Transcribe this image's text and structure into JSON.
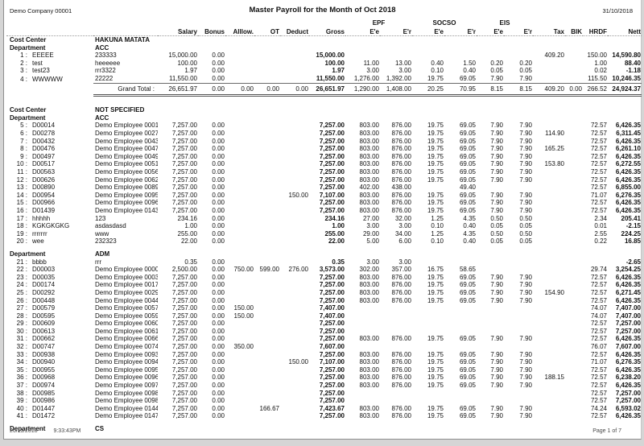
{
  "page": {
    "company": "Demo Company 00001",
    "title": "Master Payroll for the Month of Oct 2018",
    "report_date": "31/10/2018",
    "footer_date": "26/11/2018",
    "footer_time": "9:33:43PM",
    "page_info": "Page 1 of 7"
  },
  "table": {
    "group_headers": {
      "epf": "EPF",
      "socso": "SOCSO",
      "eis": "EIS"
    },
    "columns": [
      "Salary",
      "Bonus",
      "Alllow.",
      "OT",
      "Deduct",
      "Gross",
      "E'e",
      "E'r",
      "E'e",
      "E'r",
      "E'e",
      "E'r",
      "Tax",
      "BIK",
      "HRDF",
      "Nett"
    ],
    "labels": {
      "cost_center": "Cost Center",
      "department": "Department",
      "grand_total": "Grand Total :"
    },
    "rows": [
      {
        "t": "cc",
        "v": "HAKUNA MATATA"
      },
      {
        "t": "dept",
        "v": "ACC"
      },
      {
        "t": "emp",
        "n": 1,
        "code": "EEEEE",
        "name": "233333",
        "c": [
          "15,000.00",
          "0.00",
          "",
          "",
          "",
          "15,000.00",
          "",
          "",
          "",
          "",
          "",
          "",
          "409.20",
          "",
          "150.00",
          "14,590.80"
        ]
      },
      {
        "t": "emp",
        "n": 2,
        "code": "test",
        "name": "heeeeee",
        "c": [
          "100.00",
          "0.00",
          "",
          "",
          "",
          "100.00",
          "11.00",
          "13.00",
          "0.40",
          "1.50",
          "0.20",
          "0.20",
          "",
          "",
          "1.00",
          "88.40"
        ]
      },
      {
        "t": "emp",
        "n": 3,
        "code": "test23",
        "name": "rrr3322",
        "c": [
          "1.97",
          "0.00",
          "",
          "",
          "",
          "1.97",
          "3.00",
          "3.00",
          "0.10",
          "0.40",
          "0.05",
          "0.05",
          "",
          "",
          "0.02",
          "-1.18"
        ]
      },
      {
        "t": "emp",
        "n": 4,
        "code": "WWWWW",
        "name": "22222",
        "c": [
          "11,550.00",
          "0.00",
          "",
          "",
          "",
          "11,550.00",
          "1,276.00",
          "1,392.00",
          "19.75",
          "69.05",
          "7.90",
          "7.90",
          "",
          "",
          "115.50",
          "10,246.35"
        ]
      },
      {
        "t": "total",
        "c": [
          "26,651.97",
          "0.00",
          "0.00",
          "0.00",
          "0.00",
          "26,651.97",
          "1,290.00",
          "1,408.00",
          "20.25",
          "70.95",
          "8.15",
          "8.15",
          "409.20",
          "0.00",
          "266.52",
          "24,924.37"
        ]
      },
      {
        "t": "cc",
        "v": "NOT SPECIFIED"
      },
      {
        "t": "dept",
        "v": "ACC"
      },
      {
        "t": "emp",
        "n": 5,
        "code": "D00014",
        "name": "Demo Employee 00014",
        "c": [
          "7,257.00",
          "0.00",
          "",
          "",
          "",
          "7,257.00",
          "803.00",
          "876.00",
          "19.75",
          "69.05",
          "7.90",
          "7.90",
          "",
          "",
          "72.57",
          "6,426.35"
        ]
      },
      {
        "t": "emp",
        "n": 6,
        "code": "D00278",
        "name": "Demo Employee 00278",
        "c": [
          "7,257.00",
          "0.00",
          "",
          "",
          "",
          "7,257.00",
          "803.00",
          "876.00",
          "19.75",
          "69.05",
          "7.90",
          "7.90",
          "114.90",
          "",
          "72.57",
          "6,311.45"
        ]
      },
      {
        "t": "emp",
        "n": 7,
        "code": "D00432",
        "name": "Demo Employee 00432",
        "c": [
          "7,257.00",
          "0.00",
          "",
          "",
          "",
          "7,257.00",
          "803.00",
          "876.00",
          "19.75",
          "69.05",
          "7.90",
          "7.90",
          "",
          "",
          "72.57",
          "6,426.35"
        ]
      },
      {
        "t": "emp",
        "n": 8,
        "code": "D00476",
        "name": "Demo Employee 00476",
        "c": [
          "7,257.00",
          "0.00",
          "",
          "",
          "",
          "7,257.00",
          "803.00",
          "876.00",
          "19.75",
          "69.05",
          "7.90",
          "7.90",
          "165.25",
          "",
          "72.57",
          "6,261.10"
        ]
      },
      {
        "t": "emp",
        "n": 9,
        "code": "D00497",
        "name": "Demo Employee 00497",
        "c": [
          "7,257.00",
          "0.00",
          "",
          "",
          "",
          "7,257.00",
          "803.00",
          "876.00",
          "19.75",
          "69.05",
          "7.90",
          "7.90",
          "",
          "",
          "72.57",
          "6,426.35"
        ]
      },
      {
        "t": "emp",
        "n": 10,
        "code": "D00517",
        "name": "Demo Employee 00517",
        "c": [
          "7,257.00",
          "0.00",
          "",
          "",
          "",
          "7,257.00",
          "803.00",
          "876.00",
          "19.75",
          "69.05",
          "7.90",
          "7.90",
          "153.80",
          "",
          "72.57",
          "6,272.55"
        ]
      },
      {
        "t": "emp",
        "n": 11,
        "code": "D00563",
        "name": "Demo Employee 00563",
        "c": [
          "7,257.00",
          "0.00",
          "",
          "",
          "",
          "7,257.00",
          "803.00",
          "876.00",
          "19.75",
          "69.05",
          "7.90",
          "7.90",
          "",
          "",
          "72.57",
          "6,426.35"
        ]
      },
      {
        "t": "emp",
        "n": 12,
        "code": "D00626",
        "name": "Demo Employee 00626",
        "c": [
          "7,257.00",
          "0.00",
          "",
          "",
          "",
          "7,257.00",
          "803.00",
          "876.00",
          "19.75",
          "69.05",
          "7.90",
          "7.90",
          "",
          "",
          "72.57",
          "6,426.35"
        ]
      },
      {
        "t": "emp",
        "n": 13,
        "code": "D00890",
        "name": "Demo Employee 00890",
        "c": [
          "7,257.00",
          "0.00",
          "",
          "",
          "",
          "7,257.00",
          "402.00",
          "438.00",
          "",
          "49.40",
          "",
          "",
          "",
          "",
          "72.57",
          "6,855.00"
        ]
      },
      {
        "t": "emp",
        "n": 14,
        "code": "D00954",
        "name": "Demo Employee 00954",
        "c": [
          "7,257.00",
          "0.00",
          "",
          "",
          "150.00",
          "7,107.00",
          "803.00",
          "876.00",
          "19.75",
          "69.05",
          "7.90",
          "7.90",
          "",
          "",
          "71.07",
          "6,276.35"
        ]
      },
      {
        "t": "emp",
        "n": 15,
        "code": "D00966",
        "name": "Demo Employee 00966",
        "c": [
          "7,257.00",
          "0.00",
          "",
          "",
          "",
          "7,257.00",
          "803.00",
          "876.00",
          "19.75",
          "69.05",
          "7.90",
          "7.90",
          "",
          "",
          "72.57",
          "6,426.35"
        ]
      },
      {
        "t": "emp",
        "n": 16,
        "code": "D01439",
        "name": "Demo Employee 01439",
        "c": [
          "7,257.00",
          "0.00",
          "",
          "",
          "",
          "7,257.00",
          "803.00",
          "876.00",
          "19.75",
          "69.05",
          "7.90",
          "7.90",
          "",
          "",
          "72.57",
          "6,426.35"
        ]
      },
      {
        "t": "emp",
        "n": 17,
        "code": "hhhhh",
        "name": "123",
        "c": [
          "234.16",
          "0.00",
          "",
          "",
          "",
          "234.16",
          "27.00",
          "32.00",
          "1.25",
          "4.35",
          "0.50",
          "0.50",
          "",
          "",
          "2.34",
          "205.41"
        ]
      },
      {
        "t": "emp",
        "n": 18,
        "code": "KGKGKGKG",
        "name": "asdasdasd",
        "c": [
          "1.00",
          "0.00",
          "",
          "",
          "",
          "1.00",
          "3.00",
          "3.00",
          "0.10",
          "0.40",
          "0.05",
          "0.05",
          "",
          "",
          "0.01",
          "-2.15"
        ]
      },
      {
        "t": "emp",
        "n": 19,
        "code": "rrrrrrr",
        "name": "www",
        "c": [
          "255.00",
          "0.00",
          "",
          "",
          "",
          "255.00",
          "29.00",
          "34.00",
          "1.25",
          "4.35",
          "0.50",
          "0.50",
          "",
          "",
          "2.55",
          "224.25"
        ]
      },
      {
        "t": "emp",
        "n": 20,
        "code": "wee",
        "name": "232323",
        "c": [
          "22.00",
          "0.00",
          "",
          "",
          "",
          "22.00",
          "5.00",
          "6.00",
          "0.10",
          "0.40",
          "0.05",
          "0.05",
          "",
          "",
          "0.22",
          "16.85"
        ]
      },
      {
        "t": "dept",
        "v": "ADM"
      },
      {
        "t": "emp",
        "n": 21,
        "code": "bbbb",
        "name": "rrr",
        "c": [
          "0.35",
          "0.00",
          "",
          "",
          "",
          "0.35",
          "3.00",
          "3.00",
          "",
          "",
          "",
          "",
          "",
          "",
          "",
          "-2.65"
        ]
      },
      {
        "t": "emp",
        "n": 22,
        "code": "D00003",
        "name": "Demo Employee 00003",
        "c": [
          "2,500.00",
          "0.00",
          "750.00",
          "599.00",
          "276.00",
          "3,573.00",
          "302.00",
          "357.00",
          "16.75",
          "58.65",
          "",
          "",
          "",
          "",
          "29.74",
          "3,254.25"
        ]
      },
      {
        "t": "emp",
        "n": 23,
        "code": "D00035",
        "name": "Demo Employee 00035",
        "c": [
          "7,257.00",
          "0.00",
          "",
          "",
          "",
          "7,257.00",
          "803.00",
          "876.00",
          "19.75",
          "69.05",
          "7.90",
          "7.90",
          "",
          "",
          "72.57",
          "6,426.35"
        ]
      },
      {
        "t": "emp",
        "n": 24,
        "code": "D00174",
        "name": "Demo Employee 00174",
        "c": [
          "7,257.00",
          "0.00",
          "",
          "",
          "",
          "7,257.00",
          "803.00",
          "876.00",
          "19.75",
          "69.05",
          "7.90",
          "7.90",
          "",
          "",
          "72.57",
          "6,426.35"
        ]
      },
      {
        "t": "emp",
        "n": 25,
        "code": "D00292",
        "name": "Demo Employee 00292",
        "c": [
          "7,257.00",
          "0.00",
          "",
          "",
          "",
          "7,257.00",
          "803.00",
          "876.00",
          "19.75",
          "69.05",
          "7.90",
          "7.90",
          "154.90",
          "",
          "72.57",
          "6,271.45"
        ]
      },
      {
        "t": "emp",
        "n": 26,
        "code": "D00448",
        "name": "Demo Employee 00448",
        "c": [
          "7,257.00",
          "0.00",
          "",
          "",
          "",
          "7,257.00",
          "803.00",
          "876.00",
          "19.75",
          "69.05",
          "7.90",
          "7.90",
          "",
          "",
          "72.57",
          "6,426.35"
        ]
      },
      {
        "t": "emp",
        "n": 27,
        "code": "D00579",
        "name": "Demo Employee 00579",
        "c": [
          "7,257.00",
          "0.00",
          "150.00",
          "",
          "",
          "7,407.00",
          "",
          "",
          "",
          "",
          "",
          "",
          "",
          "",
          "74.07",
          "7,407.00"
        ]
      },
      {
        "t": "emp",
        "n": 28,
        "code": "D00595",
        "name": "Demo Employee 00595",
        "c": [
          "7,257.00",
          "0.00",
          "150.00",
          "",
          "",
          "7,407.00",
          "",
          "",
          "",
          "",
          "",
          "",
          "",
          "",
          "74.07",
          "7,407.00"
        ]
      },
      {
        "t": "emp",
        "n": 29,
        "code": "D00609",
        "name": "Demo Employee 00609",
        "c": [
          "7,257.00",
          "0.00",
          "",
          "",
          "",
          "7,257.00",
          "",
          "",
          "",
          "",
          "",
          "",
          "",
          "",
          "72.57",
          "7,257.00"
        ]
      },
      {
        "t": "emp",
        "n": 30,
        "code": "D00613",
        "name": "Demo Employee 00613",
        "c": [
          "7,257.00",
          "0.00",
          "",
          "",
          "",
          "7,257.00",
          "",
          "",
          "",
          "",
          "",
          "",
          "",
          "",
          "72.57",
          "7,257.00"
        ]
      },
      {
        "t": "emp",
        "n": 31,
        "code": "D00662",
        "name": "Demo Employee 00662",
        "c": [
          "7,257.00",
          "0.00",
          "",
          "",
          "",
          "7,257.00",
          "803.00",
          "876.00",
          "19.75",
          "69.05",
          "7.90",
          "7.90",
          "",
          "",
          "72.57",
          "6,426.35"
        ]
      },
      {
        "t": "emp",
        "n": 32,
        "code": "D00747",
        "name": "Demo Employee 00747",
        "c": [
          "7,257.00",
          "0.00",
          "350.00",
          "",
          "",
          "7,607.00",
          "",
          "",
          "",
          "",
          "",
          "",
          "",
          "",
          "76.07",
          "7,607.00"
        ]
      },
      {
        "t": "emp",
        "n": 33,
        "code": "D00938",
        "name": "Demo Employee 00938",
        "c": [
          "7,257.00",
          "0.00",
          "",
          "",
          "",
          "7,257.00",
          "803.00",
          "876.00",
          "19.75",
          "69.05",
          "7.90",
          "7.90",
          "",
          "",
          "72.57",
          "6,426.35"
        ]
      },
      {
        "t": "emp",
        "n": 34,
        "code": "D00940",
        "name": "Demo Employee 00940",
        "c": [
          "7,257.00",
          "0.00",
          "",
          "",
          "150.00",
          "7,107.00",
          "803.00",
          "876.00",
          "19.75",
          "69.05",
          "7.90",
          "7.90",
          "",
          "",
          "71.07",
          "6,276.35"
        ]
      },
      {
        "t": "emp",
        "n": 35,
        "code": "D00955",
        "name": "Demo Employee 00955",
        "c": [
          "7,257.00",
          "0.00",
          "",
          "",
          "",
          "7,257.00",
          "803.00",
          "876.00",
          "19.75",
          "69.05",
          "7.90",
          "7.90",
          "",
          "",
          "72.57",
          "6,426.35"
        ]
      },
      {
        "t": "emp",
        "n": 36,
        "code": "D00968",
        "name": "Demo Employee 00968",
        "c": [
          "7,257.00",
          "0.00",
          "",
          "",
          "",
          "7,257.00",
          "803.00",
          "876.00",
          "19.75",
          "69.05",
          "7.90",
          "7.90",
          "188.15",
          "",
          "72.57",
          "6,238.20"
        ]
      },
      {
        "t": "emp",
        "n": 37,
        "code": "D00974",
        "name": "Demo Employee 00974",
        "c": [
          "7,257.00",
          "0.00",
          "",
          "",
          "",
          "7,257.00",
          "803.00",
          "876.00",
          "19.75",
          "69.05",
          "7.90",
          "7.90",
          "",
          "",
          "72.57",
          "6,426.35"
        ]
      },
      {
        "t": "emp",
        "n": 38,
        "code": "D00985",
        "name": "Demo Employee 00985",
        "c": [
          "7,257.00",
          "0.00",
          "",
          "",
          "",
          "7,257.00",
          "",
          "",
          "",
          "",
          "",
          "",
          "",
          "",
          "72.57",
          "7,257.00"
        ]
      },
      {
        "t": "emp",
        "n": 39,
        "code": "D00986",
        "name": "Demo Employee 00986",
        "c": [
          "7,257.00",
          "0.00",
          "",
          "",
          "",
          "7,257.00",
          "",
          "",
          "",
          "",
          "",
          "",
          "",
          "",
          "72.57",
          "7,257.00"
        ]
      },
      {
        "t": "emp",
        "n": 40,
        "code": "D01447",
        "name": "Demo Employee 01447",
        "c": [
          "7,257.00",
          "0.00",
          "",
          "166.67",
          "",
          "7,423.67",
          "803.00",
          "876.00",
          "19.75",
          "69.05",
          "7.90",
          "7.90",
          "",
          "",
          "74.24",
          "6,593.02"
        ]
      },
      {
        "t": "emp",
        "n": 41,
        "code": "D01472",
        "name": "Demo Employee 01472",
        "c": [
          "7,257.00",
          "0.00",
          "",
          "",
          "",
          "7,257.00",
          "803.00",
          "876.00",
          "19.75",
          "69.05",
          "7.90",
          "7.90",
          "",
          "",
          "72.57",
          "6,426.35"
        ]
      },
      {
        "t": "dept",
        "v": "CS"
      }
    ]
  }
}
